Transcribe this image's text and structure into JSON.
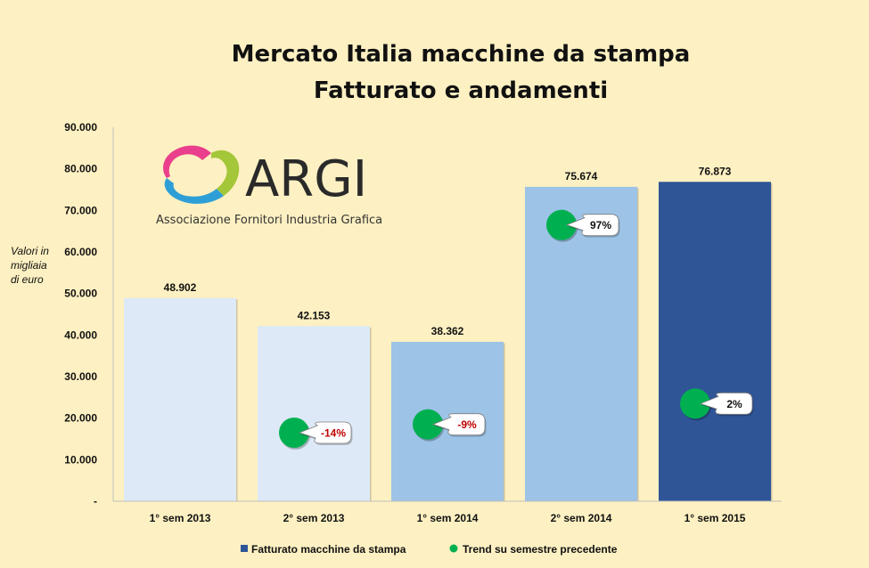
{
  "chart_data": {
    "type": "bar",
    "title": "Mercato Italia macchine da stampa",
    "subtitle": "Fatturato e andamenti",
    "ylabel": [
      "Valori in",
      "migliaia",
      "di euro"
    ],
    "ylim": [
      0,
      90000
    ],
    "y_ticks": [
      "-",
      "10.000",
      "20.000",
      "30.000",
      "40.000",
      "50.000",
      "60.000",
      "70.000",
      "80.000",
      "90.000"
    ],
    "categories": [
      "1° sem 2013",
      "2° sem 2013",
      "1° sem 2014",
      "2° sem 2014",
      "1° sem 2015"
    ],
    "series": [
      {
        "name": "Fatturato macchine da stampa",
        "values": [
          48902,
          42153,
          38362,
          75674,
          76873
        ],
        "value_labels": [
          "48.902",
          "42.153",
          "38.362",
          "75.674",
          "76.873"
        ],
        "colors": [
          "#dde9f6",
          "#dde9f6",
          "#9dc3e6",
          "#9dc3e6",
          "#2f5597"
        ]
      },
      {
        "name": "Trend su semestre precedente",
        "marker_color": "#00b050",
        "points": [
          {
            "category_index": 1,
            "y": 16500,
            "label": "-14%",
            "label_color": "#c00000"
          },
          {
            "category_index": 2,
            "y": 18500,
            "label": "-9%",
            "label_color": "#c00000"
          },
          {
            "category_index": 3,
            "y": 66500,
            "label": "97%",
            "label_color": "#111111"
          },
          {
            "category_index": 4,
            "y": 23500,
            "label": "2%",
            "label_color": "#111111"
          }
        ]
      }
    ],
    "legend_position": "bottom",
    "grid": false
  },
  "logo": {
    "name": "ARGI",
    "subtitle": "Associazione Fornitori Industria Grafica"
  }
}
